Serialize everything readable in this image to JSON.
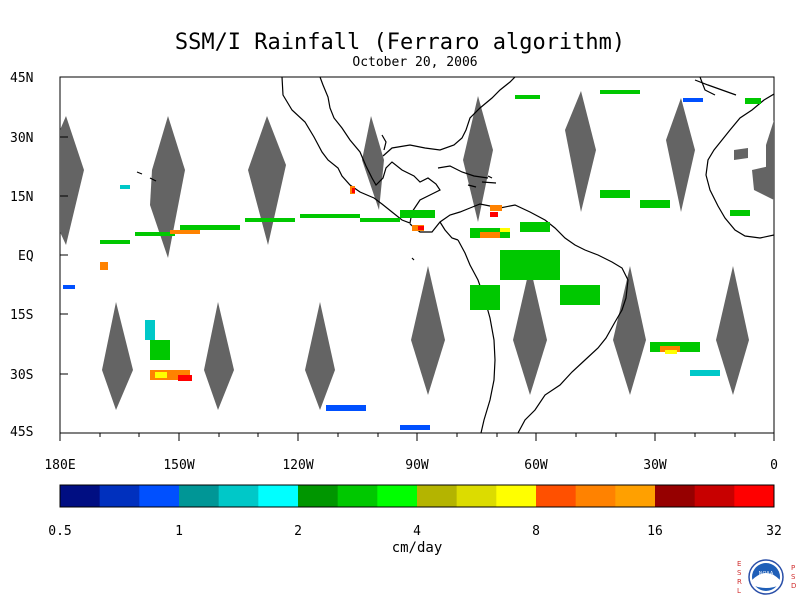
{
  "title": "SSM/I Rainfall (Ferraro algorithm)",
  "subtitle": "October 20, 2006",
  "lat_labels": [
    "45N",
    "30N",
    "15N",
    "EQ",
    "15S",
    "30S",
    "45S"
  ],
  "lon_labels": [
    "180E",
    "150W",
    "120W",
    "90W",
    "60W",
    "30W",
    "0"
  ],
  "colorbar": {
    "colors": [
      "#000e82",
      "#0030be",
      "#0050ff",
      "#009696",
      "#00c8c8",
      "#00ffff",
      "#009600",
      "#00c800",
      "#00ff00",
      "#b4b400",
      "#dcdc00",
      "#ffff00",
      "#ff5000",
      "#ff8200",
      "#ffa000",
      "#960000",
      "#c80000",
      "#ff0000"
    ],
    "tick_labels": [
      "0.5",
      "1",
      "2",
      "4",
      "8",
      "16",
      "32"
    ],
    "units": "cm/day"
  },
  "logo": {
    "left_text": "ESRL",
    "right_text": "PSD",
    "center_text": "NOAA"
  }
}
